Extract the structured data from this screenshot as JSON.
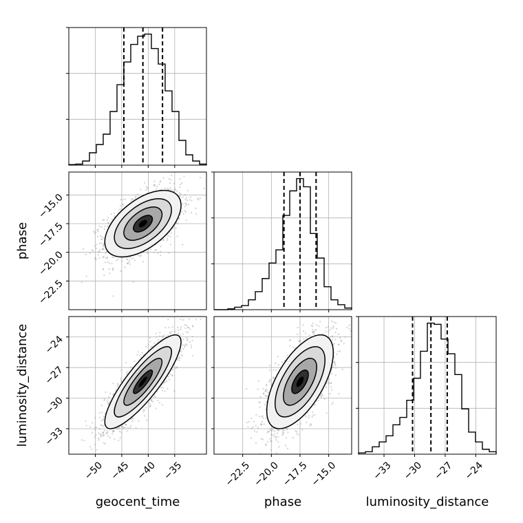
{
  "chart_data": {
    "type": "corner",
    "parameters": [
      "geocent_time",
      "phase",
      "luminosity_distance"
    ],
    "grid": true,
    "axes": {
      "geocent_time": {
        "range": [
          -55,
          -29
        ],
        "ticks": [
          -50,
          -45,
          -40,
          -35
        ],
        "tick_labels": [
          "−50",
          "−45",
          "−40",
          "−35"
        ]
      },
      "phase": {
        "range": [
          -25,
          -13
        ],
        "ticks": [
          -22.5,
          -20.0,
          -17.5,
          -15.0
        ],
        "tick_labels": [
          "−22.5",
          "−20.0",
          "−17.5",
          "−15.0"
        ]
      },
      "luminosity_distance": {
        "range": [
          -35.5,
          -22
        ],
        "ticks": [
          -33,
          -30,
          -27,
          -24
        ],
        "tick_labels": [
          "−33",
          "−30",
          "−27",
          "−24"
        ]
      }
    },
    "quantiles": {
      "geocent_time": [
        -44.6,
        -41.0,
        -37.3
      ],
      "phase": [
        -18.9,
        -17.5,
        -16.1
      ],
      "luminosity_distance": [
        -30.2,
        -28.4,
        -26.8
      ]
    },
    "histograms": {
      "geocent_time": {
        "bin_edges": [
          -55,
          -53.7,
          -52.4,
          -51.1,
          -49.8,
          -48.5,
          -47.2,
          -45.9,
          -44.6,
          -43.3,
          -42.0,
          -40.7,
          -39.4,
          -38.1,
          -36.8,
          -35.5,
          -34.2,
          -32.9,
          -31.6,
          -30.3,
          -29
        ],
        "counts": [
          0.5,
          1,
          4,
          12,
          20,
          30,
          52,
          78,
          100,
          117,
          125,
          127,
          113,
          98,
          72,
          52,
          24,
          10,
          4,
          1
        ]
      },
      "phase": {
        "bin_edges": [
          -25,
          -24.4,
          -23.8,
          -23.2,
          -22.6,
          -22.0,
          -21.4,
          -20.8,
          -20.2,
          -19.6,
          -19.0,
          -18.4,
          -17.8,
          -17.2,
          -16.6,
          -16.0,
          -15.4,
          -14.8,
          -14.2,
          -13.6,
          -13
        ],
        "counts": [
          0,
          0,
          1,
          3,
          5,
          12,
          22,
          38,
          57,
          73,
          115,
          145,
          160,
          150,
          93,
          63,
          28,
          12,
          6,
          2
        ]
      },
      "luminosity_distance": {
        "bin_edges": [
          -35.5,
          -34.825,
          -34.15,
          -33.475,
          -32.8,
          -32.125,
          -31.45,
          -30.775,
          -30.1,
          -29.425,
          -28.75,
          -28.075,
          -27.4,
          -26.725,
          -26.05,
          -25.375,
          -24.7,
          -24.025,
          -23.35,
          -22.675,
          -22
        ],
        "counts": [
          1,
          2,
          6,
          10,
          15,
          24,
          30,
          44,
          62,
          84,
          107,
          106,
          94,
          82,
          65,
          37,
          18,
          10,
          4,
          2
        ]
      }
    },
    "pairs": [
      {
        "x": "geocent_time",
        "y": "phase",
        "center": [
          -41.0,
          -17.5
        ],
        "sd": [
          3.6,
          1.45
        ],
        "rho": 0.55
      },
      {
        "x": "geocent_time",
        "y": "luminosity_distance",
        "center": [
          -41.0,
          -28.4
        ],
        "sd": [
          3.6,
          2.3
        ],
        "rho": 0.85
      },
      {
        "x": "phase",
        "y": "luminosity_distance",
        "center": [
          -17.5,
          -28.4
        ],
        "sd": [
          1.45,
          2.3
        ],
        "rho": 0.62
      }
    ],
    "contour_levels_sigma": [
      0.5,
      1.0,
      1.5,
      2.0
    ]
  }
}
